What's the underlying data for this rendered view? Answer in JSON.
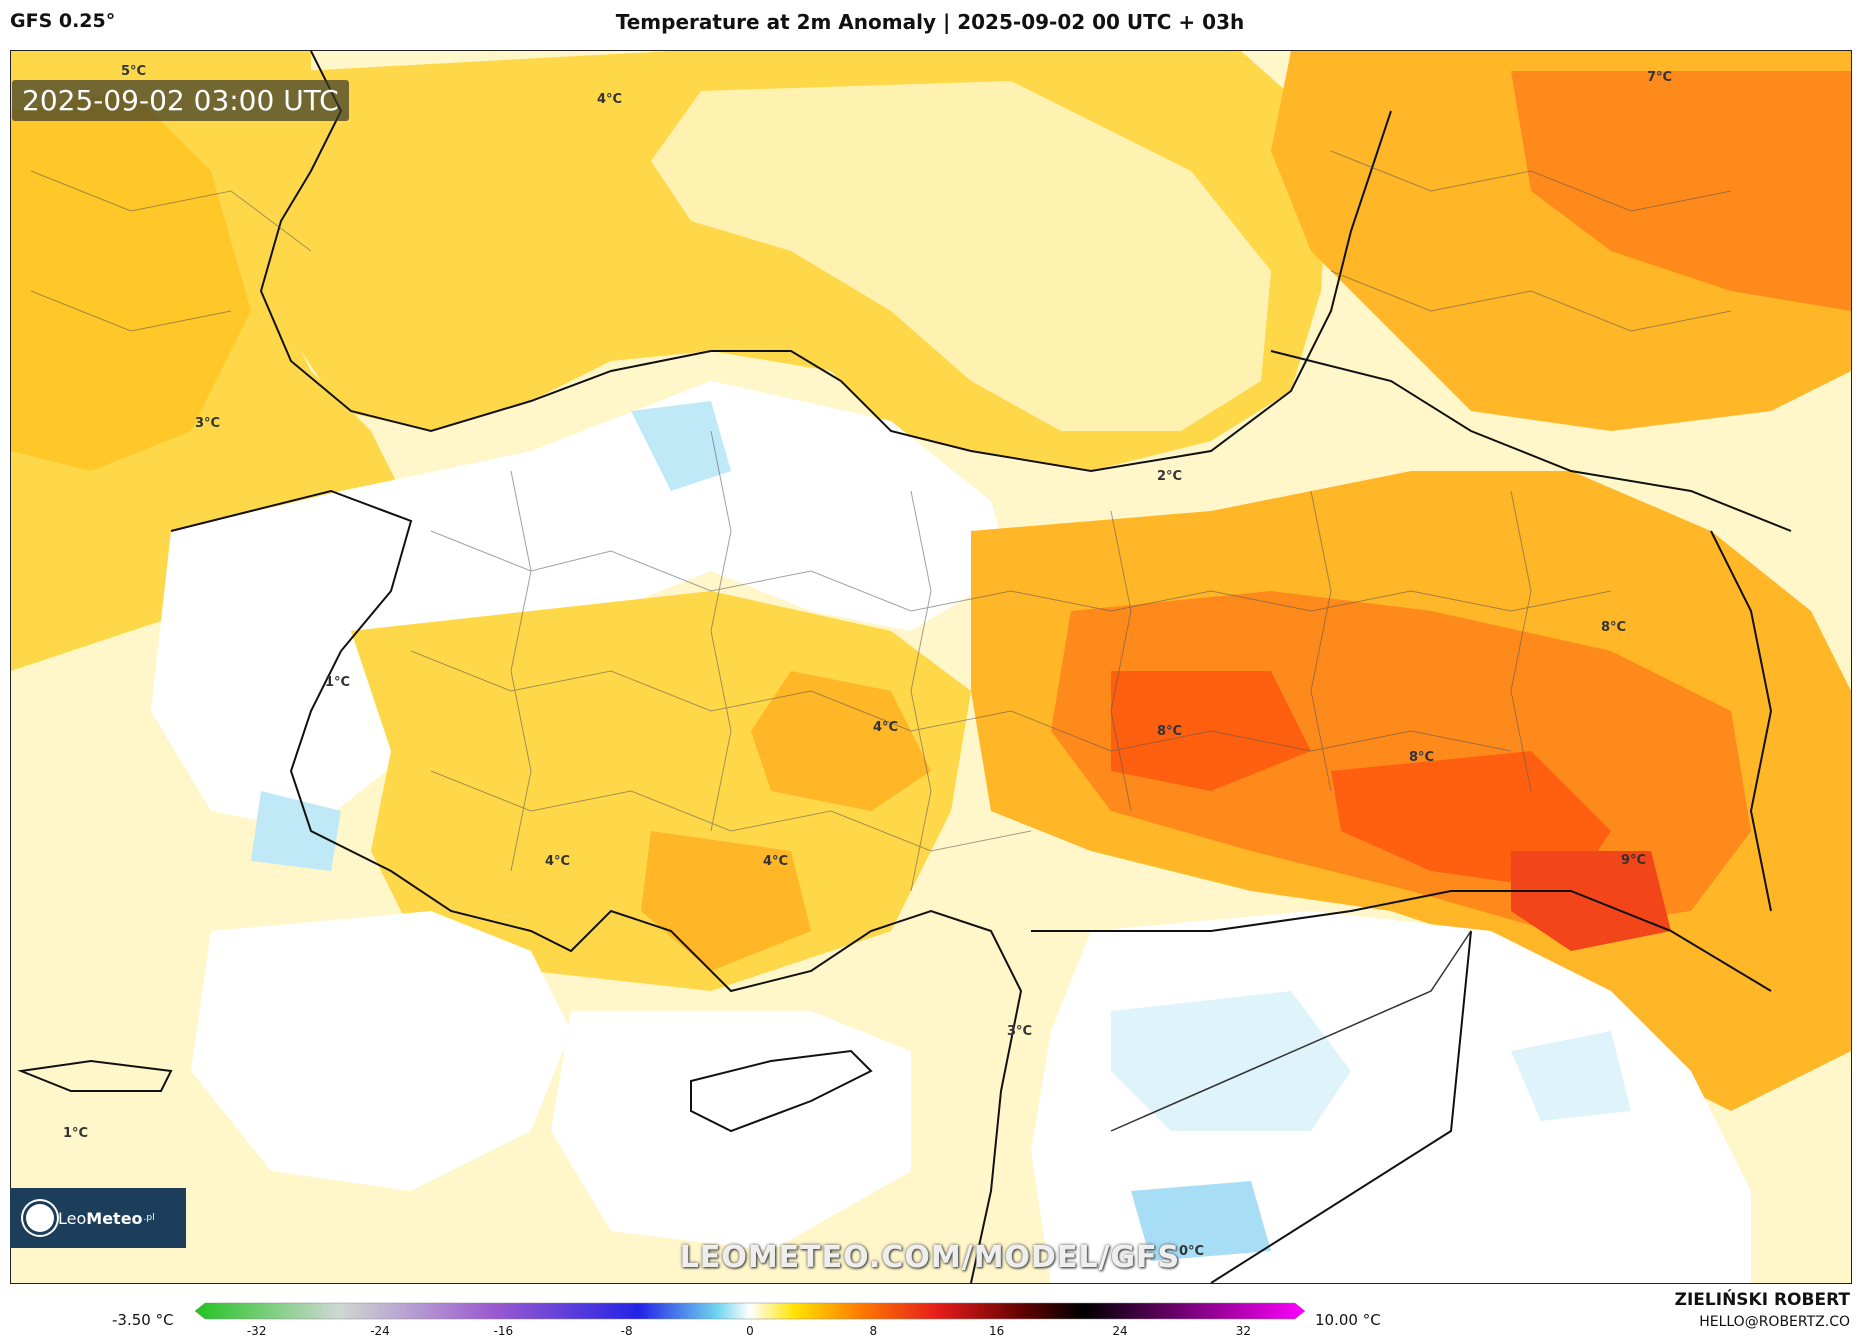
{
  "header": {
    "model": "GFS 0.25°",
    "title": "Temperature at 2m Anomaly | 2025-09-02 00 UTC + 03h"
  },
  "map": {
    "timestamp": "2025-09-02 03:00 UTC",
    "watermark": "LEOMETEO.COM/MODEL/GFS",
    "labels": [
      "5°C",
      "4°C",
      "7°C",
      "3°C",
      "2°C",
      "8°C",
      "1°C",
      "4°C",
      "8°C",
      "8°C",
      "4°C",
      "4°C",
      "9°C",
      "3°C",
      "1°C",
      "0°C"
    ]
  },
  "logo": {
    "name_light": "Leo",
    "name_bold": "Meteo",
    "suffix": ".pl"
  },
  "legend": {
    "min_label": "-3.50 °C",
    "max_label": "10.00 °C",
    "ticks": [
      "-32",
      "-24",
      "-16",
      "-8",
      "0",
      "8",
      "16",
      "24",
      "32"
    ],
    "colors": {
      "green": "#22c322",
      "gray": "#cfd8d3",
      "purple": "#9b59d0",
      "blue": "#2323e6",
      "cyan": "#6fd4f0",
      "white": "#ffffff",
      "yellow": "#ffe400",
      "orange": "#ff7a00",
      "red": "#e51b1b",
      "darkred": "#5a0000",
      "black": "#000000",
      "magenta": "#ff00ff"
    }
  },
  "author": {
    "name": "ZIELIŃSKI ROBERT",
    "email": "HELLO@ROBERTZ.CO"
  }
}
